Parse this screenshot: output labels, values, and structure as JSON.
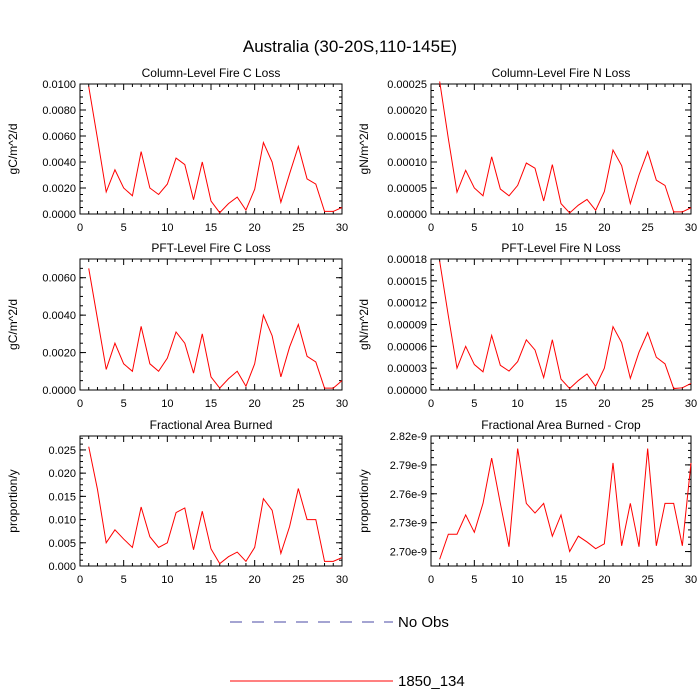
{
  "figure": {
    "title": "Australia (30-20S,110-145E)"
  },
  "legend": {
    "entries": [
      {
        "label": "No Obs",
        "color": "#4a4aa6",
        "style": "dashed"
      },
      {
        "label": "1850_134",
        "color": "#ff0000",
        "style": "solid"
      }
    ]
  },
  "chart_data": [
    {
      "type": "line",
      "title": "Column-Level Fire C Loss",
      "ylabel": "gC/m^2/d",
      "xlim": [
        0,
        30
      ],
      "ylim": [
        0,
        0.01
      ],
      "xticks": [
        "0",
        "5",
        "10",
        "15",
        "20",
        "25",
        "30"
      ],
      "yticks": [
        "0.0000",
        "0.0020",
        "0.0040",
        "0.0060",
        "0.0080",
        "0.0100"
      ],
      "x": [
        1,
        2,
        3,
        4,
        5,
        6,
        7,
        8,
        9,
        10,
        11,
        12,
        13,
        14,
        15,
        16,
        17,
        18,
        19,
        20,
        21,
        22,
        23,
        24,
        25,
        26,
        27,
        28,
        29,
        30
      ],
      "series": [
        {
          "name": "1850_134",
          "color": "#ff0000",
          "values": [
            0.0098,
            0.0058,
            0.0017,
            0.0034,
            0.002,
            0.0014,
            0.0048,
            0.002,
            0.0015,
            0.0023,
            0.0043,
            0.0038,
            0.0011,
            0.004,
            0.001,
            0.0001,
            0.0008,
            0.0013,
            0.0003,
            0.0019,
            0.0055,
            0.004,
            0.0009,
            0.0031,
            0.0052,
            0.0027,
            0.0023,
            0.0002,
            0.0002,
            0.0005
          ]
        }
      ]
    },
    {
      "type": "line",
      "title": "Column-Level Fire N Loss",
      "ylabel": "gN/m^2/d",
      "xlim": [
        0,
        30
      ],
      "ylim": [
        0,
        0.00025
      ],
      "xticks": [
        "0",
        "5",
        "10",
        "15",
        "20",
        "25",
        "30"
      ],
      "yticks": [
        "0.00000",
        "0.00005",
        "0.00010",
        "0.00015",
        "0.00020",
        "0.00025"
      ],
      "x": [
        1,
        2,
        3,
        4,
        5,
        6,
        7,
        8,
        9,
        10,
        11,
        12,
        13,
        14,
        15,
        16,
        17,
        18,
        19,
        20,
        21,
        22,
        23,
        24,
        25,
        26,
        27,
        28,
        29,
        30
      ],
      "series": [
        {
          "name": "1850_134",
          "color": "#ff0000",
          "values": [
            0.000255,
            0.000145,
            4.2e-05,
            8.4e-05,
            5e-05,
            3.5e-05,
            0.00011,
            4.8e-05,
            3.5e-05,
            5.5e-05,
            9.8e-05,
            8.8e-05,
            2.5e-05,
            9.5e-05,
            2e-05,
            2e-06,
            1.7e-05,
            2.8e-05,
            7e-06,
            4.3e-05,
            0.000123,
            9.3e-05,
            2e-05,
            7.5e-05,
            0.00012,
            6.5e-05,
            5.5e-05,
            4e-06,
            4e-06,
            1.2e-05
          ]
        }
      ]
    },
    {
      "type": "line",
      "title": "PFT-Level Fire C Loss",
      "ylabel": "gC/m^2/d",
      "xlim": [
        0,
        30
      ],
      "ylim": [
        0,
        0.007
      ],
      "xticks": [
        "0",
        "5",
        "10",
        "15",
        "20",
        "25",
        "30"
      ],
      "yticks": [
        "0.0000",
        "0.0020",
        "0.0040",
        "0.0060"
      ],
      "ytick_values": [
        0,
        0.002,
        0.004,
        0.006
      ],
      "x": [
        1,
        2,
        3,
        4,
        5,
        6,
        7,
        8,
        9,
        10,
        11,
        12,
        13,
        14,
        15,
        16,
        17,
        18,
        19,
        20,
        21,
        22,
        23,
        24,
        25,
        26,
        27,
        28,
        29,
        30
      ],
      "series": [
        {
          "name": "1850_134",
          "color": "#ff0000",
          "values": [
            0.0065,
            0.0038,
            0.0011,
            0.0025,
            0.0014,
            0.001,
            0.0034,
            0.0014,
            0.001,
            0.0017,
            0.0031,
            0.0025,
            0.0009,
            0.003,
            0.0007,
            0.0001,
            0.0006,
            0.001,
            0.0002,
            0.0014,
            0.004,
            0.0029,
            0.0007,
            0.0023,
            0.0035,
            0.0018,
            0.0015,
            0.0001,
            0.0001,
            0.0005
          ]
        }
      ]
    },
    {
      "type": "line",
      "title": "PFT-Level Fire N Loss",
      "ylabel": "gN/m^2/d",
      "xlim": [
        0,
        30
      ],
      "ylim": [
        0,
        0.00018
      ],
      "xticks": [
        "0",
        "5",
        "10",
        "15",
        "20",
        "25",
        "30"
      ],
      "yticks": [
        "0.00000",
        "0.00003",
        "0.00006",
        "0.00009",
        "0.00012",
        "0.00015",
        "0.00018"
      ],
      "x": [
        1,
        2,
        3,
        4,
        5,
        6,
        7,
        8,
        9,
        10,
        11,
        12,
        13,
        14,
        15,
        16,
        17,
        18,
        19,
        20,
        21,
        22,
        23,
        24,
        25,
        26,
        27,
        28,
        29,
        30
      ],
      "series": [
        {
          "name": "1850_134",
          "color": "#ff0000",
          "values": [
            0.000177,
            0.000102,
            3e-05,
            6e-05,
            3.5e-05,
            2.5e-05,
            7.5e-05,
            3.4e-05,
            2.6e-05,
            3.9e-05,
            6.9e-05,
            5.5e-05,
            1.7e-05,
            6.9e-05,
            1.5e-05,
            2e-06,
            1.3e-05,
            2.2e-05,
            5e-06,
            3e-05,
            8.7e-05,
            6.5e-05,
            1.6e-05,
            5.2e-05,
            7.9e-05,
            4.5e-05,
            3.6e-05,
            2e-06,
            3e-06,
            9e-06
          ]
        }
      ]
    },
    {
      "type": "line",
      "title": "Fractional Area Burned",
      "ylabel": "proportion/y",
      "xlim": [
        0,
        30
      ],
      "ylim": [
        0,
        0.028
      ],
      "xticks": [
        "0",
        "5",
        "10",
        "15",
        "20",
        "25",
        "30"
      ],
      "yticks": [
        "0.000",
        "0.005",
        "0.010",
        "0.015",
        "0.020",
        "0.025"
      ],
      "ytick_values": [
        0,
        0.005,
        0.01,
        0.015,
        0.02,
        0.025
      ],
      "x": [
        1,
        2,
        3,
        4,
        5,
        6,
        7,
        8,
        9,
        10,
        11,
        12,
        13,
        14,
        15,
        16,
        17,
        18,
        19,
        20,
        21,
        22,
        23,
        24,
        25,
        26,
        27,
        28,
        29,
        30
      ],
      "series": [
        {
          "name": "1850_134",
          "color": "#ff0000",
          "values": [
            0.0257,
            0.0165,
            0.005,
            0.0078,
            0.0058,
            0.004,
            0.0127,
            0.0063,
            0.004,
            0.005,
            0.0115,
            0.0125,
            0.0035,
            0.0118,
            0.0037,
            0.0005,
            0.002,
            0.003,
            0.001,
            0.004,
            0.0145,
            0.012,
            0.0027,
            0.0085,
            0.0167,
            0.01,
            0.01,
            0.001,
            0.001,
            0.0018
          ]
        }
      ]
    },
    {
      "type": "line",
      "title": "Fractional Area Burned - Crop",
      "ylabel": "proportion/y",
      "xlim": [
        0,
        30
      ],
      "ylim": [
        2.685e-09,
        2.82e-09
      ],
      "xticks": [
        "0",
        "5",
        "10",
        "15",
        "20",
        "25",
        "30"
      ],
      "yticks": [
        "2.70e-9",
        "2.73e-9",
        "2.76e-9",
        "2.79e-9",
        "2.82e-9"
      ],
      "ytick_values": [
        2.7e-09,
        2.73e-09,
        2.76e-09,
        2.79e-09,
        2.82e-09
      ],
      "x": [
        1,
        2,
        3,
        4,
        5,
        6,
        7,
        8,
        9,
        10,
        11,
        12,
        13,
        14,
        15,
        16,
        17,
        18,
        19,
        20,
        21,
        22,
        23,
        24,
        25,
        26,
        27,
        28,
        29,
        30
      ],
      "series": [
        {
          "name": "1850_134",
          "color": "#ff0000",
          "values": [
            2.692e-09,
            2.718e-09,
            2.718e-09,
            2.738e-09,
            2.72e-09,
            2.75e-09,
            2.797e-09,
            2.75e-09,
            2.705e-09,
            2.807e-09,
            2.75e-09,
            2.74e-09,
            2.75e-09,
            2.716e-09,
            2.738e-09,
            2.7e-09,
            2.716e-09,
            2.71e-09,
            2.703e-09,
            2.708e-09,
            2.792e-09,
            2.706e-09,
            2.75e-09,
            2.705e-09,
            2.807e-09,
            2.706e-09,
            2.75e-09,
            2.75e-09,
            2.706e-09,
            2.792e-09
          ]
        }
      ]
    }
  ]
}
